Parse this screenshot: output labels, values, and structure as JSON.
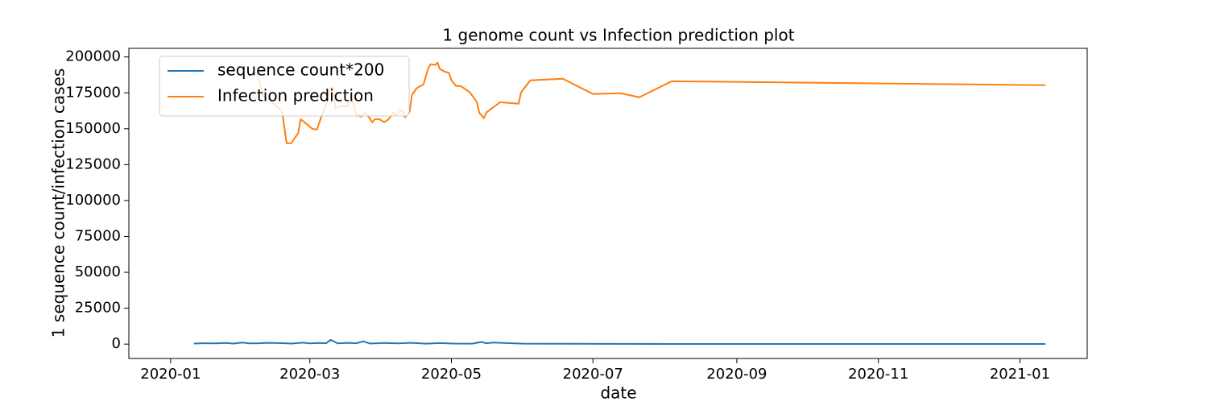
{
  "chart_data": {
    "type": "line",
    "title": "1 genome count vs Infection prediction plot",
    "xlabel": "date",
    "ylabel": "1 sequence count/infection cases",
    "legend": "upper left",
    "xlim": [
      "2019-12-14",
      "2021-01-30"
    ],
    "xticks": [
      {
        "value": "2020-01-01",
        "label": "2020-01"
      },
      {
        "value": "2020-03-01",
        "label": "2020-03"
      },
      {
        "value": "2020-05-01",
        "label": "2020-05"
      },
      {
        "value": "2020-07-01",
        "label": "2020-07"
      },
      {
        "value": "2020-09-01",
        "label": "2020-09"
      },
      {
        "value": "2020-11-01",
        "label": "2020-11"
      },
      {
        "value": "2021-01-01",
        "label": "2021-01"
      }
    ],
    "ylim": [
      -10000,
      206000
    ],
    "yticks": [
      0,
      25000,
      50000,
      75000,
      100000,
      125000,
      150000,
      175000,
      200000
    ],
    "series": [
      {
        "name": "sequence count*200",
        "color": "#1f77b4",
        "x": [
          "2020-01-11",
          "2020-01-15",
          "2020-01-20",
          "2020-01-25",
          "2020-01-28",
          "2020-02-01",
          "2020-02-04",
          "2020-02-08",
          "2020-02-12",
          "2020-02-17",
          "2020-02-22",
          "2020-02-27",
          "2020-03-01",
          "2020-03-05",
          "2020-03-08",
          "2020-03-10",
          "2020-03-13",
          "2020-03-17",
          "2020-03-21",
          "2020-03-24",
          "2020-03-27",
          "2020-04-02",
          "2020-04-08",
          "2020-04-14",
          "2020-04-20",
          "2020-04-26",
          "2020-05-02",
          "2020-05-10",
          "2020-05-14",
          "2020-05-16",
          "2020-05-19",
          "2020-06-01",
          "2020-08-04",
          "2021-01-12"
        ],
        "values": [
          400,
          600,
          500,
          800,
          400,
          1100,
          500,
          600,
          900,
          700,
          400,
          1000,
          500,
          800,
          600,
          3000,
          500,
          900,
          600,
          1900,
          400,
          800,
          500,
          900,
          300,
          700,
          400,
          300,
          1500,
          600,
          1100,
          300,
          100,
          100
        ]
      },
      {
        "name": "Infection prediction",
        "color": "#ff7f0e",
        "x": [
          "2020-02-07",
          "2020-02-10",
          "2020-02-14",
          "2020-02-18",
          "2020-02-20",
          "2020-02-22",
          "2020-02-25",
          "2020-02-26",
          "2020-02-29",
          "2020-03-02",
          "2020-03-04",
          "2020-03-06",
          "2020-03-08",
          "2020-03-10",
          "2020-03-11",
          "2020-03-12",
          "2020-03-14",
          "2020-03-17",
          "2020-03-19",
          "2020-03-21",
          "2020-03-23",
          "2020-03-25",
          "2020-03-27",
          "2020-03-28",
          "2020-03-29",
          "2020-03-31",
          "2020-04-02",
          "2020-04-04",
          "2020-04-06",
          "2020-04-07",
          "2020-04-09",
          "2020-04-10",
          "2020-04-11",
          "2020-04-13",
          "2020-04-14",
          "2020-04-16",
          "2020-04-17",
          "2020-04-19",
          "2020-04-21",
          "2020-04-22",
          "2020-04-24",
          "2020-04-25",
          "2020-04-26",
          "2020-04-28",
          "2020-04-30",
          "2020-05-01",
          "2020-05-03",
          "2020-05-05",
          "2020-05-09",
          "2020-05-12",
          "2020-05-13",
          "2020-05-15",
          "2020-05-16",
          "2020-05-22",
          "2020-05-30",
          "2020-05-31",
          "2020-06-04",
          "2020-06-18",
          "2020-07-01",
          "2020-07-13",
          "2020-07-21",
          "2020-08-04",
          "2021-01-12"
        ],
        "values": [
          189300,
          172500,
          168000,
          162400,
          139900,
          140000,
          147000,
          156700,
          152800,
          150000,
          149400,
          158400,
          166900,
          178100,
          179200,
          164000,
          165700,
          165700,
          171300,
          160100,
          158400,
          161200,
          156700,
          154500,
          156700,
          156700,
          154500,
          156700,
          161200,
          159600,
          162400,
          162900,
          157900,
          161800,
          173600,
          178100,
          179200,
          180900,
          192100,
          194900,
          194400,
          196100,
          191600,
          189900,
          188800,
          183700,
          179800,
          179800,
          175300,
          168500,
          161200,
          157300,
          161200,
          168500,
          167400,
          175300,
          183700,
          184800,
          174200,
          174700,
          171900,
          183100,
          180300
        ]
      }
    ]
  }
}
